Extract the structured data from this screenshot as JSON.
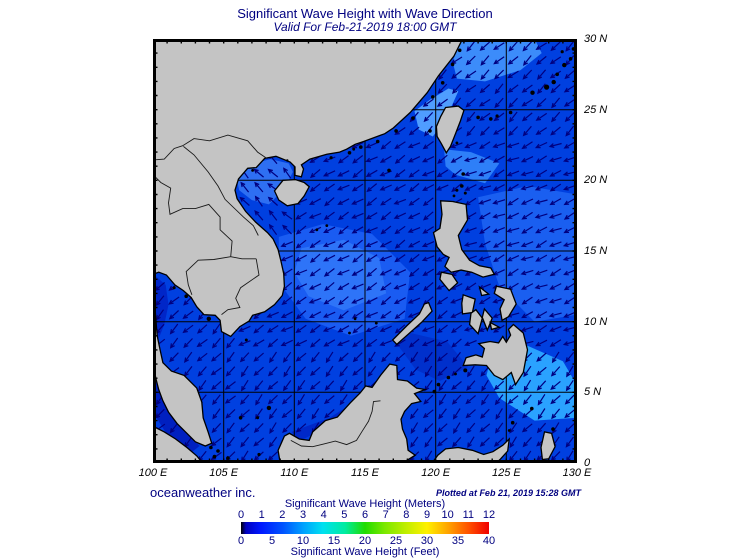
{
  "title": {
    "main": "Significant Wave Height with Wave Direction",
    "valid": "Valid For Feb-21-2019 18:00 GMT"
  },
  "credits": {
    "org": "oceanweather inc.",
    "plotted": "Plotted at Feb 21, 2019 15:28 GMT"
  },
  "map": {
    "extent": {
      "lon_min": 100,
      "lon_max": 130,
      "lat_min": 0,
      "lat_max": 30
    },
    "grid_step_deg": 5,
    "minor_tick_step_deg": 1,
    "lat_tick_labels": [
      "30 N",
      "25 N",
      "20 N",
      "15 N",
      "10 N",
      "5 N",
      "0"
    ],
    "lon_tick_labels": [
      "100 E",
      "105 E",
      "110 E",
      "115 E",
      "120 E",
      "125 E",
      "130 E"
    ],
    "colors": {
      "land": "#c4c4c4",
      "coast": "#000000",
      "sea_base": "#0040e0",
      "arrow": "#000080",
      "grid": "#000000",
      "frame": "#000000",
      "border_lines": "#1a1a1a"
    }
  },
  "colorbar": {
    "title_meters": "Significant Wave Height (Meters)",
    "title_feet": "Significant Wave Height (Feet)",
    "meters_ticks": [
      0,
      1,
      2,
      3,
      4,
      5,
      6,
      7,
      8,
      9,
      10,
      11,
      12
    ],
    "feet_ticks": [
      0,
      5,
      10,
      15,
      20,
      25,
      30,
      35,
      40
    ],
    "gradient_stops": [
      [
        "0%",
        "#000000"
      ],
      [
        "2%",
        "#0000c0"
      ],
      [
        "8%",
        "#0018ff"
      ],
      [
        "17%",
        "#0054ff"
      ],
      [
        "25%",
        "#00a0ff"
      ],
      [
        "33%",
        "#00e0f0"
      ],
      [
        "42%",
        "#00eca0"
      ],
      [
        "50%",
        "#20dc00"
      ],
      [
        "58%",
        "#7ce800"
      ],
      [
        "67%",
        "#c4ee00"
      ],
      [
        "75%",
        "#fff000"
      ],
      [
        "83%",
        "#ffa800"
      ],
      [
        "92%",
        "#ff5000"
      ],
      [
        "100%",
        "#f00000"
      ]
    ]
  }
}
